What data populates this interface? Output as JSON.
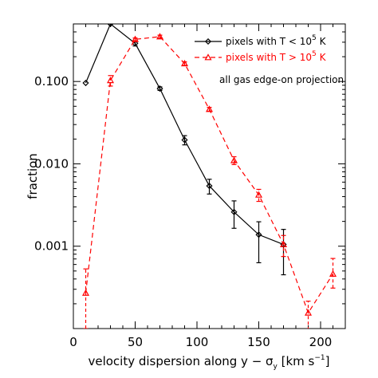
{
  "chart_data": {
    "type": "line",
    "xlabel": {
      "main": "velocity dispersion along y − σ",
      "subscript": "y",
      "unit_open": " [km s",
      "unit_exp": "−1",
      "unit_close": "]"
    },
    "ylabel": "fraction",
    "xlim": [
      0,
      220
    ],
    "ylim": [
      0.0001,
      0.5
    ],
    "yscale": "log",
    "xticks": [
      0,
      50,
      100,
      150,
      200
    ],
    "xtick_labels": [
      "0",
      "50",
      "100",
      "150",
      "200"
    ],
    "yticks": [
      0.001,
      0.01,
      0.1
    ],
    "ytick_labels": [
      "0.001",
      "0.010",
      "0.100"
    ],
    "grid": false,
    "legend_placement": "top-right",
    "annotation": "all gas edge-on projection",
    "series": [
      {
        "label_prefix": "pixels with T < 10",
        "label_exp": "5",
        "label_suffix": " K",
        "color": "#000000",
        "linestyle": "solid",
        "marker": "diamond",
        "x": [
          10,
          30,
          50,
          70,
          90,
          110,
          130,
          150,
          170
        ],
        "y": [
          0.096,
          0.5,
          0.29,
          0.082,
          0.0195,
          0.0054,
          0.0026,
          0.00138,
          0.00105
        ],
        "err_low": [
          0.0,
          0.0,
          0.02,
          0.004,
          0.0025,
          0.0011,
          0.00095,
          0.00075,
          0.0006
        ],
        "err_high": [
          0.0,
          0.0,
          0.02,
          0.004,
          0.0025,
          0.0011,
          0.00095,
          0.0006,
          0.00055
        ]
      },
      {
        "label_prefix": "pixels with T > 10",
        "label_exp": "5",
        "label_suffix": " K",
        "color": "#ff0000",
        "linestyle": "dashed",
        "marker": "triangle",
        "x": [
          10,
          30,
          50,
          70,
          90,
          110,
          130,
          150,
          170,
          190,
          210
        ],
        "y": [
          0.00027,
          0.103,
          0.325,
          0.35,
          0.165,
          0.046,
          0.011,
          0.0042,
          0.00105,
          0.000155,
          0.00046
        ],
        "err_low": [
          0.00017,
          0.015,
          0.012,
          0.015,
          0.008,
          0.0025,
          0.0012,
          0.0007,
          0.0003,
          6e-05,
          0.00015
        ],
        "err_high": [
          0.00026,
          0.015,
          0.012,
          0.015,
          0.008,
          0.0025,
          0.0012,
          0.0007,
          0.0003,
          6e-05,
          0.00025
        ]
      }
    ]
  }
}
